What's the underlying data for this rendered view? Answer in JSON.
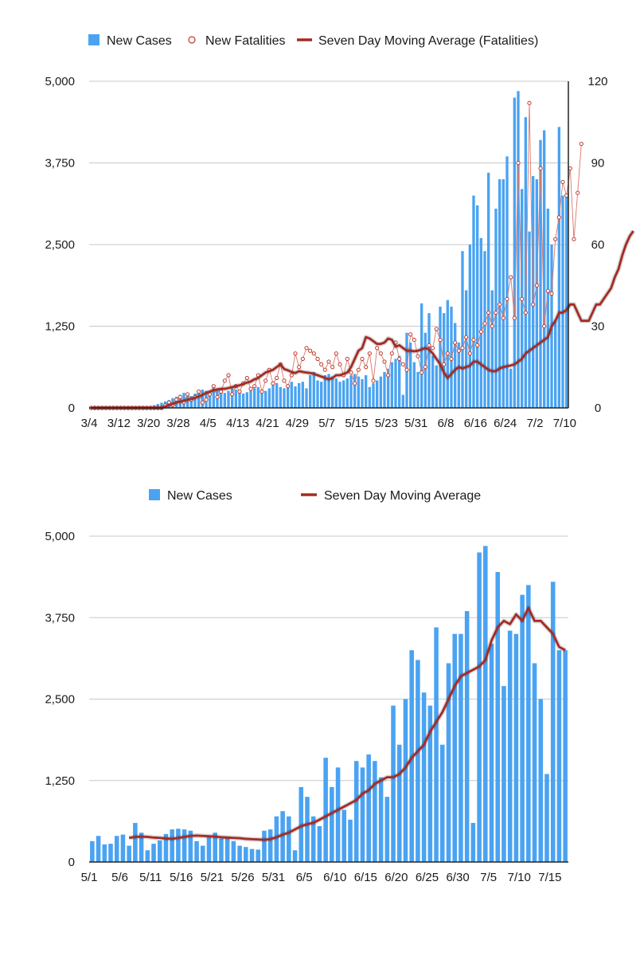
{
  "chart_data": [
    {
      "type": "bar",
      "title": "",
      "legend": [
        "New Cases",
        "New Fatalities",
        "Seven Day Moving Average (Fatalities)"
      ],
      "legend_position": "top",
      "xlabel": "",
      "ylabel": "",
      "ylim": [
        0,
        5000
      ],
      "y2lim": [
        0,
        120
      ],
      "yticks": [
        "0",
        "1,250",
        "2,500",
        "3,750",
        "5,000"
      ],
      "y2ticks": [
        "0",
        "30",
        "60",
        "90",
        "120"
      ],
      "xticks": [
        "3/4",
        "3/12",
        "3/20",
        "3/28",
        "4/5",
        "4/13",
        "4/21",
        "4/29",
        "5/7",
        "5/15",
        "5/23",
        "5/31",
        "6/8",
        "6/16",
        "6/24",
        "7/2",
        "7/10"
      ],
      "grid": true,
      "x_start": "3/4",
      "series": [
        {
          "name": "New Cases",
          "type": "bar",
          "axis": "left",
          "color": "#4aa3f2",
          "values": [
            0,
            0,
            0,
            0,
            0,
            0,
            0,
            0,
            0,
            0,
            0,
            0,
            0,
            0,
            5,
            10,
            20,
            40,
            60,
            80,
            100,
            120,
            150,
            170,
            200,
            230,
            200,
            180,
            220,
            250,
            280,
            260,
            240,
            300,
            270,
            250,
            230,
            260,
            300,
            280,
            250,
            220,
            240,
            280,
            300,
            320,
            280,
            260,
            300,
            350,
            380,
            320,
            300,
            350,
            400,
            330,
            380,
            400,
            300,
            500,
            550,
            420,
            400,
            500,
            520,
            480,
            450,
            400,
            420,
            450,
            500,
            520,
            480,
            440,
            500,
            320,
            380,
            420,
            480,
            550,
            600,
            700,
            750,
            800,
            200,
            1150,
            1000,
            700,
            550,
            1600,
            1150,
            1450,
            800,
            650,
            1550,
            1450,
            1650,
            1550,
            1300,
            1000,
            2400,
            1800,
            2500,
            3250,
            3100,
            2600,
            2400,
            3600,
            1800,
            3050,
            3500,
            3500,
            3850,
            600,
            4750,
            4850,
            3350,
            4450,
            2700,
            3550,
            3500,
            4100,
            4250,
            3050,
            2500,
            1350,
            4300,
            3250,
            3250
          ]
        },
        {
          "name": "New Fatalities",
          "type": "line-markers",
          "axis": "right",
          "color": "#c0392b",
          "values": [
            0,
            0,
            0,
            0,
            0,
            0,
            0,
            0,
            0,
            0,
            0,
            0,
            0,
            0,
            0,
            0,
            0,
            0,
            0,
            0,
            1,
            2,
            1,
            3,
            4,
            2,
            5,
            3,
            4,
            6,
            2,
            3,
            5,
            8,
            4,
            6,
            10,
            12,
            5,
            8,
            6,
            9,
            11,
            7,
            8,
            12,
            6,
            10,
            14,
            9,
            11,
            16,
            10,
            8,
            12,
            20,
            15,
            18,
            22,
            21,
            20,
            18,
            16,
            14,
            17,
            15,
            20,
            16,
            12,
            18,
            13,
            9,
            14,
            18,
            15,
            20,
            10,
            22,
            20,
            17,
            12,
            20,
            24,
            18,
            16,
            14,
            27,
            25,
            19,
            13,
            15,
            23,
            22,
            29,
            25,
            16,
            20,
            18,
            24,
            21,
            22,
            26,
            20,
            25,
            23,
            28,
            31,
            35,
            30,
            35,
            38,
            33,
            40,
            48,
            33,
            90,
            40,
            35,
            112,
            38,
            45,
            88,
            30,
            43,
            42,
            62,
            70,
            83,
            78,
            88,
            62,
            79,
            97
          ]
        },
        {
          "name": "Seven Day Moving Average (Fatalities)",
          "type": "line",
          "axis": "right",
          "color": "#a62a24",
          "values": [
            0,
            0,
            0,
            0,
            0,
            0,
            0,
            0,
            0,
            0,
            0,
            0,
            0,
            0,
            0,
            0,
            0,
            0,
            0,
            0,
            0.5,
            1,
            1.5,
            2,
            2.3,
            2.6,
            3,
            3.3,
            3.7,
            4.2,
            4.8,
            5.5,
            6,
            6.5,
            6.8,
            7,
            7,
            7.3,
            7.6,
            8,
            8.3,
            8.8,
            9.3,
            9.7,
            10.5,
            11,
            12,
            13,
            13.5,
            14,
            15,
            16,
            14.3,
            13.8,
            13.2,
            12.8,
            13.5,
            13.2,
            13,
            12.8,
            12.5,
            12,
            11.5,
            11,
            10.5,
            11,
            12,
            12,
            12.5,
            13,
            15,
            18,
            21,
            22,
            26,
            25.5,
            24.5,
            23.5,
            23.5,
            24,
            25.5,
            25,
            22.5,
            23,
            22,
            21,
            21,
            20.8,
            21,
            21.5,
            22,
            21.5,
            20,
            18,
            16,
            13,
            11,
            12.5,
            14,
            15,
            14.5,
            15,
            15.5,
            17,
            17,
            16,
            15,
            14,
            13.5,
            13.5,
            14.5,
            15,
            15.3,
            15.6,
            16,
            17,
            18,
            20,
            21,
            22,
            23,
            24,
            25,
            26,
            30,
            32,
            35,
            35,
            36,
            38,
            38,
            35,
            32,
            32,
            32,
            35,
            38,
            38,
            40,
            42,
            44,
            48,
            51,
            56,
            60,
            63,
            65
          ]
        }
      ]
    },
    {
      "type": "bar",
      "title": "",
      "legend": [
        "New Cases",
        "Seven Day Moving Average"
      ],
      "legend_position": "top",
      "xlabel": "",
      "ylabel": "",
      "ylim": [
        0,
        5000
      ],
      "yticks": [
        "0",
        "1,250",
        "2,500",
        "3,750",
        "5,000"
      ],
      "xticks": [
        "5/1",
        "5/6",
        "5/11",
        "5/16",
        "5/21",
        "5/26",
        "5/31",
        "6/5",
        "6/10",
        "6/15",
        "6/20",
        "6/25",
        "6/30",
        "7/5",
        "7/10",
        "7/15"
      ],
      "grid": true,
      "x_start": "5/1",
      "series": [
        {
          "name": "New Cases",
          "type": "bar",
          "color": "#4aa3f2",
          "values": [
            320,
            400,
            270,
            280,
            400,
            420,
            250,
            600,
            450,
            180,
            280,
            330,
            430,
            500,
            510,
            500,
            480,
            320,
            250,
            400,
            450,
            360,
            380,
            320,
            250,
            230,
            200,
            190,
            480,
            500,
            700,
            780,
            700,
            180,
            1150,
            1000,
            700,
            550,
            1600,
            1150,
            1450,
            800,
            650,
            1550,
            1450,
            1650,
            1550,
            1300,
            1000,
            2400,
            1800,
            2500,
            3250,
            3100,
            2600,
            2400,
            3600,
            1800,
            3050,
            3500,
            3500,
            3850,
            600,
            4750,
            4850,
            3350,
            4450,
            2700,
            3550,
            3500,
            4100,
            4250,
            3050,
            2500,
            1350,
            4300,
            3250,
            3250
          ]
        },
        {
          "name": "Seven Day Moving Average",
          "type": "line",
          "color": "#a62a24",
          "values": [
            null,
            null,
            null,
            null,
            null,
            null,
            370,
            385,
            390,
            385,
            375,
            370,
            360,
            355,
            370,
            385,
            400,
            405,
            400,
            395,
            390,
            380,
            375,
            370,
            365,
            355,
            350,
            345,
            340,
            350,
            380,
            420,
            450,
            500,
            550,
            580,
            600,
            650,
            700,
            750,
            800,
            850,
            900,
            950,
            1050,
            1100,
            1200,
            1250,
            1300,
            1300,
            1350,
            1450,
            1600,
            1700,
            1800,
            2000,
            2150,
            2300,
            2500,
            2700,
            2850,
            2900,
            2950,
            3000,
            3100,
            3400,
            3600,
            3700,
            3650,
            3800,
            3700,
            3900,
            3700,
            3700,
            3600,
            3500,
            3300,
            3250
          ]
        }
      ]
    }
  ]
}
